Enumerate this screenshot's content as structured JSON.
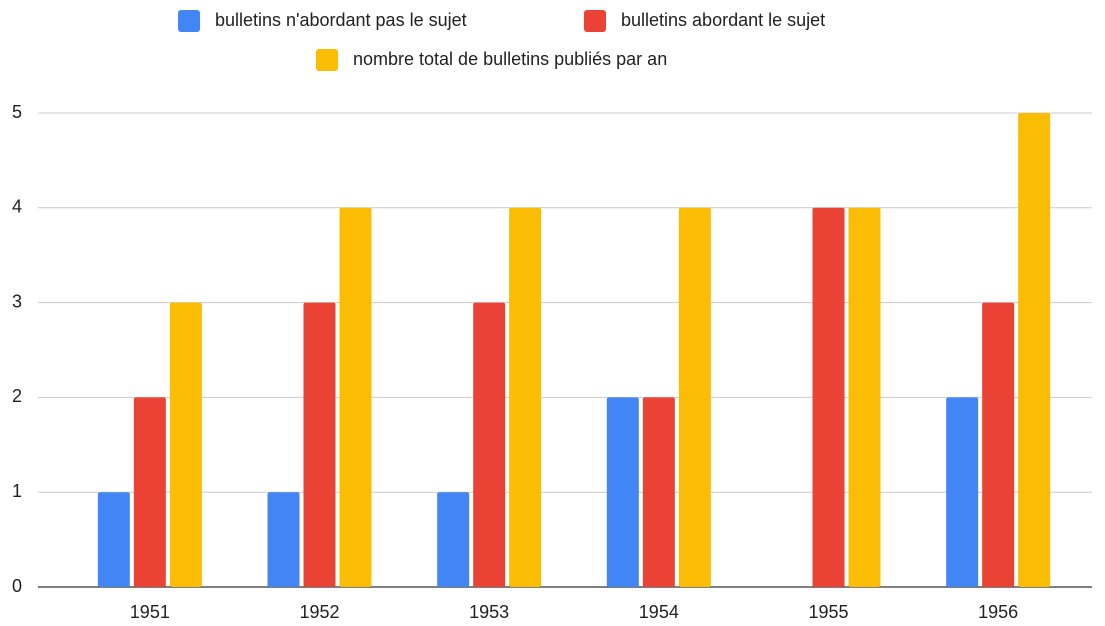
{
  "chart_data": {
    "type": "bar",
    "categories": [
      "1951",
      "1952",
      "1953",
      "1954",
      "1955",
      "1956"
    ],
    "series": [
      {
        "name": "bulletins n'abordant pas le sujet",
        "color": "#4285f4",
        "values": [
          1,
          1,
          1,
          2,
          0,
          2
        ]
      },
      {
        "name": "bulletins abordant le sujet",
        "color": "#ea4335",
        "values": [
          2,
          3,
          3,
          2,
          4,
          3
        ]
      },
      {
        "name": "nombre total de bulletins publiés par an",
        "color": "#fbbc04",
        "values": [
          3,
          4,
          4,
          4,
          4,
          5
        ]
      }
    ],
    "ylim": [
      0,
      5
    ],
    "yticks": [
      0,
      1,
      2,
      3,
      4,
      5
    ],
    "grid": true,
    "legend": "top"
  }
}
